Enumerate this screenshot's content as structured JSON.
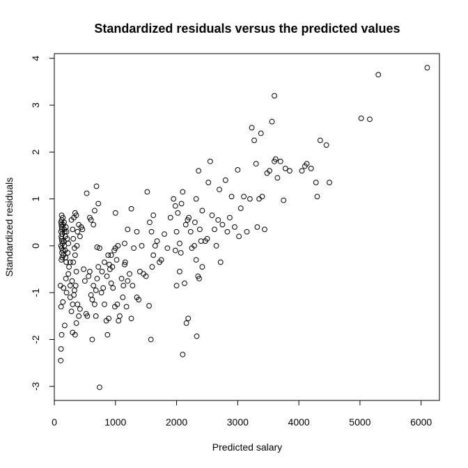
{
  "chart_data": {
    "type": "scatter",
    "title": "Standardized residuals versus the predicted values",
    "xlabel": "Predicted salary",
    "ylabel": "Standardized residuals",
    "xlim": [
      0,
      6300
    ],
    "ylim": [
      -3.3,
      4.1
    ],
    "x_ticks": [
      0,
      1000,
      2000,
      3000,
      4000,
      5000,
      6000
    ],
    "y_ticks": [
      -3,
      -2,
      -1,
      0,
      1,
      2,
      3,
      4
    ],
    "x_tick_labels": [
      "0",
      "1000",
      "2000",
      "3000",
      "4000",
      "5000",
      "6000"
    ],
    "y_tick_labels": [
      "-3",
      "-2",
      "-1",
      "0",
      "1",
      "2",
      "3",
      "4"
    ],
    "grid": false,
    "marker": "open-circle",
    "points": [
      [
        120,
        0.65
      ],
      [
        110,
        0.5
      ],
      [
        115,
        0.45
      ],
      [
        120,
        0.4
      ],
      [
        125,
        0.35
      ],
      [
        110,
        0.3
      ],
      [
        130,
        0.25
      ],
      [
        115,
        0.2
      ],
      [
        120,
        0.15
      ],
      [
        125,
        0.1
      ],
      [
        135,
        0.05
      ],
      [
        110,
        0.0
      ],
      [
        120,
        -0.05
      ],
      [
        140,
        -0.1
      ],
      [
        125,
        -0.15
      ],
      [
        150,
        -0.2
      ],
      [
        130,
        -0.25
      ],
      [
        115,
        -0.3
      ],
      [
        120,
        0.55
      ],
      [
        145,
        0.45
      ],
      [
        160,
        0.35
      ],
      [
        170,
        0.3
      ],
      [
        180,
        0.2
      ],
      [
        155,
        0.1
      ],
      [
        165,
        0.0
      ],
      [
        175,
        -0.1
      ],
      [
        185,
        -0.25
      ],
      [
        140,
        0.6
      ],
      [
        160,
        0.5
      ],
      [
        190,
        0.4
      ],
      [
        200,
        0.3
      ],
      [
        210,
        0.15
      ],
      [
        195,
        -0.35
      ],
      [
        220,
        -0.15
      ],
      [
        230,
        0.05
      ],
      [
        100,
        -0.85
      ],
      [
        110,
        -1.3
      ],
      [
        140,
        -1.2
      ],
      [
        120,
        -1.9
      ],
      [
        110,
        -2.2
      ],
      [
        105,
        -2.45
      ],
      [
        150,
        -0.9
      ],
      [
        170,
        -1.7
      ],
      [
        190,
        -0.7
      ],
      [
        200,
        -1.0
      ],
      [
        230,
        -0.6
      ],
      [
        240,
        -0.45
      ],
      [
        260,
        -1.1
      ],
      [
        280,
        -1.4
      ],
      [
        300,
        -1.25
      ],
      [
        320,
        -1.05
      ],
      [
        340,
        -1.9
      ],
      [
        360,
        -1.65
      ],
      [
        300,
        -1.85
      ],
      [
        330,
        -0.95
      ],
      [
        350,
        -0.85
      ],
      [
        380,
        -1.25
      ],
      [
        400,
        -1.5
      ],
      [
        420,
        -1.35
      ],
      [
        260,
        -0.35
      ],
      [
        280,
        0.55
      ],
      [
        300,
        0.35
      ],
      [
        320,
        0.6
      ],
      [
        340,
        0.7
      ],
      [
        360,
        0.65
      ],
      [
        380,
        0.3
      ],
      [
        310,
        0.15
      ],
      [
        330,
        -0.05
      ],
      [
        370,
        0.0
      ],
      [
        400,
        0.45
      ],
      [
        420,
        0.2
      ],
      [
        440,
        0.4
      ],
      [
        460,
        0.35
      ],
      [
        480,
        -0.5
      ],
      [
        500,
        -0.75
      ],
      [
        520,
        -1.45
      ],
      [
        540,
        -1.5
      ],
      [
        560,
        -0.65
      ],
      [
        580,
        -0.55
      ],
      [
        600,
        -1.05
      ],
      [
        620,
        -1.15
      ],
      [
        640,
        -0.85
      ],
      [
        660,
        -1.25
      ],
      [
        680,
        -0.95
      ],
      [
        700,
        -0.7
      ],
      [
        720,
        -0.45
      ],
      [
        260,
        -0.85
      ],
      [
        290,
        -0.75
      ],
      [
        310,
        -0.35
      ],
      [
        340,
        -0.2
      ],
      [
        360,
        -0.55
      ],
      [
        530,
        1.12
      ],
      [
        580,
        0.6
      ],
      [
        600,
        0.55
      ],
      [
        640,
        0.45
      ],
      [
        660,
        0.75
      ],
      [
        690,
        1.27
      ],
      [
        720,
        0.9
      ],
      [
        700,
        -0.03
      ],
      [
        740,
        -0.05
      ],
      [
        620,
        -2.0
      ],
      [
        680,
        -1.5
      ],
      [
        740,
        -3.02
      ],
      [
        770,
        -1.0
      ],
      [
        800,
        -0.9
      ],
      [
        820,
        -1.25
      ],
      [
        850,
        -1.6
      ],
      [
        870,
        -1.9
      ],
      [
        890,
        -1.55
      ],
      [
        910,
        -0.5
      ],
      [
        930,
        -0.2
      ],
      [
        950,
        -0.45
      ],
      [
        980,
        -0.1
      ],
      [
        1000,
        -0.05
      ],
      [
        1020,
        -0.3
      ],
      [
        960,
        -0.9
      ],
      [
        990,
        -1.3
      ],
      [
        1030,
        -1.25
      ],
      [
        1050,
        -1.6
      ],
      [
        1070,
        -1.5
      ],
      [
        1100,
        -0.7
      ],
      [
        1130,
        -0.85
      ],
      [
        1150,
        -0.4
      ],
      [
        1160,
        -0.35
      ],
      [
        1120,
        -1.1
      ],
      [
        1180,
        -1.3
      ],
      [
        1200,
        -0.75
      ],
      [
        1230,
        -0.6
      ],
      [
        1260,
        -1.55
      ],
      [
        1280,
        -0.85
      ],
      [
        1300,
        -0.05
      ],
      [
        1350,
        -1.1
      ],
      [
        1380,
        -1.15
      ],
      [
        1400,
        -0.55
      ],
      [
        1430,
        -0.0
      ],
      [
        1460,
        -0.6
      ],
      [
        1500,
        -0.65
      ],
      [
        1550,
        -1.28
      ],
      [
        1580,
        -2.0
      ],
      [
        1600,
        -0.45
      ],
      [
        1620,
        -0.2
      ],
      [
        1650,
        0.0
      ],
      [
        1000,
        0.7
      ],
      [
        1040,
        0.0
      ],
      [
        1150,
        0.05
      ],
      [
        1200,
        0.35
      ],
      [
        1260,
        0.79
      ],
      [
        1350,
        0.3
      ],
      [
        880,
        -0.2
      ],
      [
        900,
        -0.4
      ],
      [
        860,
        -0.65
      ],
      [
        930,
        -0.8
      ],
      [
        780,
        -0.55
      ],
      [
        820,
        -0.35
      ],
      [
        1520,
        1.15
      ],
      [
        1560,
        0.5
      ],
      [
        1590,
        0.3
      ],
      [
        1620,
        0.65
      ],
      [
        1680,
        0.1
      ],
      [
        1720,
        -0.35
      ],
      [
        1750,
        -0.3
      ],
      [
        1800,
        0.25
      ],
      [
        1850,
        -0.05
      ],
      [
        1900,
        0.6
      ],
      [
        1950,
        1.0
      ],
      [
        1980,
        0.85
      ],
      [
        2000,
        0.3
      ],
      [
        2020,
        0.7
      ],
      [
        2050,
        0.05
      ],
      [
        2080,
        0.9
      ],
      [
        2100,
        1.15
      ],
      [
        2150,
        0.45
      ],
      [
        2180,
        0.55
      ],
      [
        2200,
        0.6
      ],
      [
        2230,
        0.3
      ],
      [
        2000,
        -0.85
      ],
      [
        1980,
        -0.1
      ],
      [
        2050,
        -0.55
      ],
      [
        2070,
        -0.15
      ],
      [
        2130,
        -0.8
      ],
      [
        2100,
        -2.32
      ],
      [
        2160,
        -1.65
      ],
      [
        2190,
        -1.55
      ],
      [
        2250,
        -0.05
      ],
      [
        2290,
        0.0
      ],
      [
        2320,
        -0.3
      ],
      [
        2330,
        -1.93
      ],
      [
        2350,
        -0.65
      ],
      [
        2370,
        -0.7
      ],
      [
        2400,
        0.1
      ],
      [
        2420,
        -0.45
      ],
      [
        2300,
        0.5
      ],
      [
        2320,
        1.0
      ],
      [
        2360,
        1.6
      ],
      [
        2380,
        0.35
      ],
      [
        2420,
        0.75
      ],
      [
        2470,
        0.1
      ],
      [
        2500,
        0.15
      ],
      [
        2520,
        1.35
      ],
      [
        2550,
        1.8
      ],
      [
        2580,
        0.65
      ],
      [
        2620,
        0.35
      ],
      [
        2650,
        0.0
      ],
      [
        2680,
        0.55
      ],
      [
        2700,
        1.2
      ],
      [
        2720,
        -0.35
      ],
      [
        2750,
        0.45
      ],
      [
        2800,
        1.4
      ],
      [
        2830,
        0.3
      ],
      [
        2870,
        0.6
      ],
      [
        2900,
        1.05
      ],
      [
        2950,
        0.4
      ],
      [
        3000,
        1.62
      ],
      [
        3020,
        0.2
      ],
      [
        3050,
        0.8
      ],
      [
        3100,
        1.05
      ],
      [
        3150,
        0.3
      ],
      [
        3200,
        1.0
      ],
      [
        3230,
        2.52
      ],
      [
        3270,
        2.25
      ],
      [
        3300,
        1.75
      ],
      [
        3320,
        0.4
      ],
      [
        3350,
        1.0
      ],
      [
        3400,
        1.05
      ],
      [
        3380,
        2.4
      ],
      [
        3440,
        0.35
      ],
      [
        3480,
        1.55
      ],
      [
        3520,
        1.6
      ],
      [
        3560,
        2.65
      ],
      [
        3600,
        1.8
      ],
      [
        3620,
        1.85
      ],
      [
        3650,
        1.45
      ],
      [
        3700,
        1.8
      ],
      [
        3750,
        0.97
      ],
      [
        3850,
        1.6
      ],
      [
        3600,
        3.2
      ],
      [
        3780,
        1.65
      ],
      [
        4050,
        1.6
      ],
      [
        4100,
        1.7
      ],
      [
        4130,
        1.75
      ],
      [
        4200,
        1.65
      ],
      [
        4280,
        1.35
      ],
      [
        4300,
        1.05
      ],
      [
        4350,
        2.25
      ],
      [
        4450,
        2.15
      ],
      [
        4500,
        1.35
      ],
      [
        5020,
        2.72
      ],
      [
        5160,
        2.7
      ],
      [
        5300,
        3.65
      ],
      [
        6100,
        3.8
      ]
    ]
  }
}
